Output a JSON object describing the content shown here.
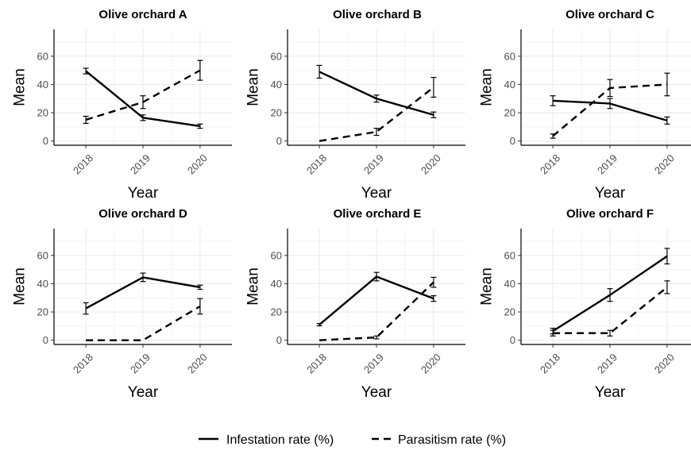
{
  "chart_data": {
    "type": "line",
    "layout": "2x3 facets",
    "legend_position": "bottom",
    "grid": true,
    "xlabel": "Year",
    "ylabel": "Mean",
    "x": [
      "2018",
      "2019",
      "2020"
    ],
    "yticks": [
      0,
      20,
      40,
      60
    ],
    "ylim": [
      -3,
      79
    ],
    "series_styles": {
      "Infestation rate (%)": "solid",
      "Parasitism rate (%)": "dashed"
    },
    "legend": [
      "Infestation rate (%)",
      "Parasitism rate (%)"
    ],
    "panels": [
      {
        "title": "Olive orchard A",
        "series": [
          {
            "name": "Infestation rate (%)",
            "values": [
              49.5,
              16.5,
              10.5
            ],
            "err": [
              2,
              2,
              1.5
            ]
          },
          {
            "name": "Parasitism rate (%)",
            "values": [
              15,
              27.5,
              50
            ],
            "err": [
              2.5,
              4.5,
              7
            ]
          }
        ]
      },
      {
        "title": "Olive orchard B",
        "series": [
          {
            "name": "Infestation rate (%)",
            "values": [
              49,
              30,
              18.5
            ],
            "err": [
              4.5,
              2.5,
              2
            ]
          },
          {
            "name": "Parasitism rate (%)",
            "values": [
              0,
              6.5,
              38
            ],
            "err": [
              0,
              2.5,
              7
            ]
          }
        ]
      },
      {
        "title": "Olive orchard C",
        "series": [
          {
            "name": "Infestation rate (%)",
            "values": [
              28.5,
              26.5,
              14.5
            ],
            "err": [
              3.5,
              3.5,
              2.5
            ]
          },
          {
            "name": "Parasitism rate (%)",
            "values": [
              3.5,
              37.5,
              40
            ],
            "err": [
              1.5,
              6,
              8
            ]
          }
        ]
      },
      {
        "title": "Olive orchard D",
        "series": [
          {
            "name": "Infestation rate (%)",
            "values": [
              22.5,
              44.5,
              37.5
            ],
            "err": [
              4,
              3,
              1.5
            ]
          },
          {
            "name": "Parasitism rate (%)",
            "values": [
              0,
              0,
              24
            ],
            "err": [
              0,
              0,
              5.5
            ]
          }
        ]
      },
      {
        "title": "Olive orchard E",
        "series": [
          {
            "name": "Infestation rate (%)",
            "values": [
              11,
              45,
              29.5
            ],
            "err": [
              0.8,
              3,
              2
            ]
          },
          {
            "name": "Parasitism rate (%)",
            "values": [
              0,
              2,
              41
            ],
            "err": [
              0,
              1,
              3.5
            ]
          }
        ]
      },
      {
        "title": "Olive orchard F",
        "series": [
          {
            "name": "Infestation rate (%)",
            "values": [
              6.5,
              32,
              59.5
            ],
            "err": [
              2,
              4.5,
              5.5
            ]
          },
          {
            "name": "Parasitism rate (%)",
            "values": [
              5,
              5,
              37.5
            ],
            "err": [
              2,
              2,
              4.5
            ]
          }
        ]
      }
    ]
  }
}
